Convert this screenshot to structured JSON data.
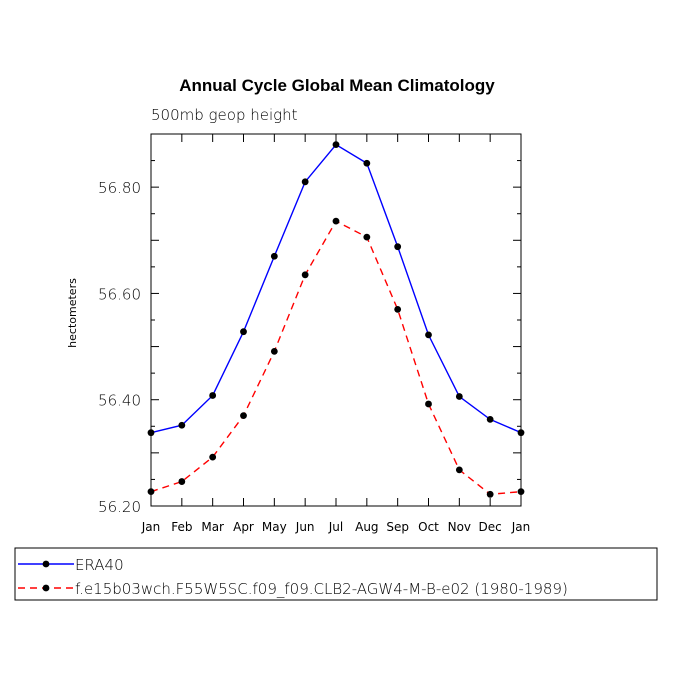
{
  "chart_data": {
    "type": "line",
    "title": "Annual Cycle Global Mean Climatology",
    "subtitle": "500mb geop height",
    "xlabel": "",
    "ylabel": "hectometers",
    "categories": [
      "Jan",
      "Feb",
      "Mar",
      "Apr",
      "May",
      "Jun",
      "Jul",
      "Aug",
      "Sep",
      "Oct",
      "Nov",
      "Dec",
      "Jan"
    ],
    "ylim": [
      56.2,
      56.9
    ],
    "yticks": [
      56.2,
      56.4,
      56.6,
      56.8
    ],
    "ytick_labels": [
      "56.20",
      "56.40",
      "56.60",
      "56.80"
    ],
    "grid": false,
    "legend_position": "bottom-left",
    "series": [
      {
        "name": "ERA40",
        "color": "#0000ff",
        "line_style": "solid",
        "values": [
          56.338,
          56.352,
          56.408,
          56.528,
          56.67,
          56.81,
          56.88,
          56.845,
          56.688,
          56.522,
          56.406,
          56.363,
          56.338
        ]
      },
      {
        "name": "f.e15b03wch.F55W5SC.f09_f09.CLB2-AGW4-M-B-e02 (1980-1989)",
        "color": "#ff0000",
        "line_style": "dashed",
        "values": [
          56.227,
          56.246,
          56.292,
          56.37,
          56.491,
          56.635,
          56.736,
          56.706,
          56.57,
          56.392,
          56.268,
          56.222,
          56.227
        ]
      }
    ]
  }
}
